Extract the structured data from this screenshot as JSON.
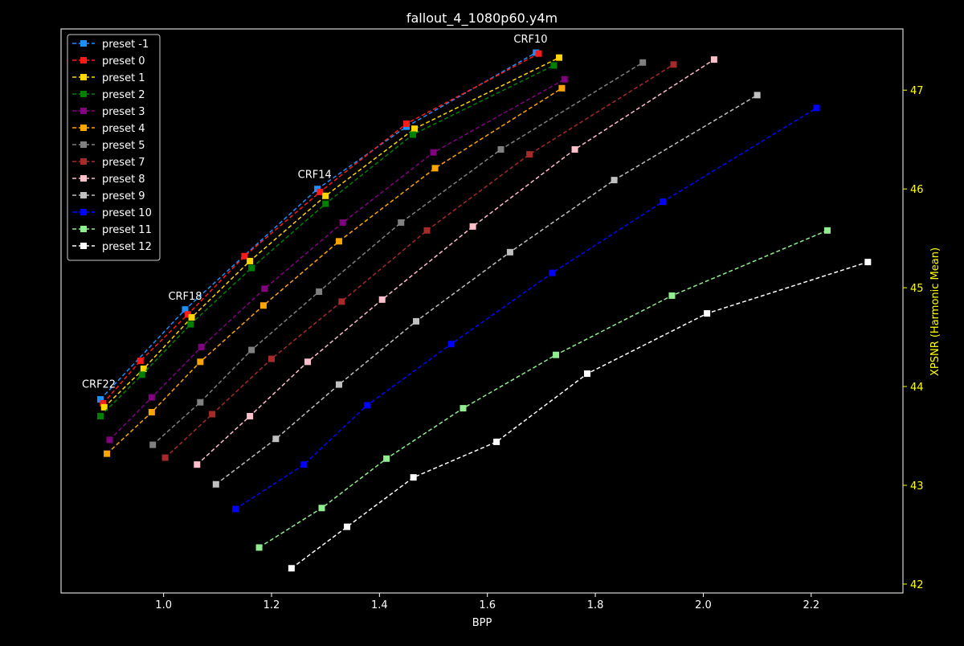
{
  "chart_data": {
    "type": "line",
    "title": "fallout_4_1080p60.y4m",
    "xlabel": "BPP",
    "ylabel": "XPSNR (Harmonic Mean)",
    "xlim": [
      0.81,
      2.37
    ],
    "ylim": [
      41.91,
      47.62
    ],
    "x_ticks": [
      "1.0",
      "1.2",
      "1.4",
      "1.6",
      "1.8",
      "2.0",
      "2.2"
    ],
    "y_ticks": [
      "42",
      "43",
      "44",
      "45",
      "46",
      "47"
    ],
    "y_axis_side": "right",
    "grid": false,
    "legend_position": "top-left",
    "annotations": [
      {
        "text": "CRF10",
        "x": 1.68,
        "y": 47.48
      },
      {
        "text": "CRF14",
        "x": 1.28,
        "y": 46.11
      },
      {
        "text": "CRF18",
        "x": 1.04,
        "y": 44.88
      },
      {
        "text": "CRF22",
        "x": 0.88,
        "y": 43.99
      }
    ],
    "series": [
      {
        "name": "preset -1",
        "color": "#1e8fff",
        "x": [
          0.883,
          1.04,
          1.285,
          1.45,
          1.69
        ],
        "y": [
          43.87,
          44.78,
          46.0,
          46.63,
          47.38
        ]
      },
      {
        "name": "preset 0",
        "color": "#ff1a1a",
        "x": [
          0.888,
          0.957,
          1.045,
          1.15,
          1.29,
          1.45,
          1.695
        ],
        "y": [
          43.83,
          44.26,
          44.73,
          45.32,
          45.97,
          46.66,
          47.37
        ]
      },
      {
        "name": "preset 1",
        "color": "#ffd700",
        "x": [
          0.89,
          0.963,
          1.052,
          1.16,
          1.3,
          1.465,
          1.733
        ],
        "y": [
          43.79,
          44.18,
          44.7,
          45.27,
          45.93,
          46.61,
          47.33
        ]
      },
      {
        "name": "preset 2",
        "color": "#008000",
        "x": [
          0.883,
          0.96,
          1.05,
          1.163,
          1.3,
          1.462,
          1.723
        ],
        "y": [
          43.7,
          44.12,
          44.63,
          45.2,
          45.85,
          46.55,
          47.25
        ]
      },
      {
        "name": "preset 3",
        "color": "#800080",
        "x": [
          0.9,
          0.978,
          1.07,
          1.187,
          1.332,
          1.5,
          1.743
        ],
        "y": [
          43.46,
          43.89,
          44.4,
          44.99,
          45.66,
          46.37,
          47.11
        ]
      },
      {
        "name": "preset 4",
        "color": "#ffa500",
        "x": [
          0.895,
          0.978,
          1.068,
          1.185,
          1.325,
          1.503,
          1.738
        ],
        "y": [
          43.32,
          43.74,
          44.25,
          44.82,
          45.47,
          46.21,
          47.02
        ]
      },
      {
        "name": "preset 5",
        "color": "#808080",
        "x": [
          0.98,
          1.068,
          1.163,
          1.288,
          1.44,
          1.625,
          1.888
        ],
        "y": [
          43.41,
          43.84,
          44.37,
          44.96,
          45.66,
          46.4,
          47.28
        ]
      },
      {
        "name": "preset 7",
        "color": "#a52a2a",
        "x": [
          1.003,
          1.09,
          1.2,
          1.33,
          1.488,
          1.678,
          1.945
        ],
        "y": [
          43.28,
          43.72,
          44.28,
          44.86,
          45.58,
          46.35,
          47.26
        ]
      },
      {
        "name": "preset 8",
        "color": "#ffc0cb",
        "x": [
          1.062,
          1.16,
          1.267,
          1.405,
          1.573,
          1.762,
          2.02
        ],
        "y": [
          43.21,
          43.7,
          44.25,
          44.88,
          45.62,
          46.4,
          47.31
        ]
      },
      {
        "name": "preset 9",
        "color": "#c0c0c0",
        "x": [
          1.097,
          1.208,
          1.325,
          1.468,
          1.642,
          1.835,
          2.1
        ],
        "y": [
          43.01,
          43.47,
          44.02,
          44.66,
          45.36,
          46.09,
          46.95
        ]
      },
      {
        "name": "preset 10",
        "color": "#0000ff",
        "x": [
          1.133,
          1.26,
          1.377,
          1.533,
          1.72,
          1.925,
          2.21
        ],
        "y": [
          42.76,
          43.21,
          43.81,
          44.43,
          45.15,
          45.87,
          46.82
        ]
      },
      {
        "name": "preset 11",
        "color": "#90ee90",
        "x": [
          1.177,
          1.293,
          1.413,
          1.555,
          1.727,
          1.942,
          2.23
        ],
        "y": [
          42.37,
          42.77,
          43.27,
          43.78,
          44.32,
          44.92,
          45.58
        ]
      },
      {
        "name": "preset 12",
        "color": "#ffffff",
        "x": [
          1.237,
          1.34,
          1.463,
          1.617,
          1.785,
          2.007,
          2.305
        ],
        "y": [
          42.16,
          42.58,
          43.08,
          43.44,
          44.13,
          44.74,
          45.26
        ]
      }
    ]
  }
}
